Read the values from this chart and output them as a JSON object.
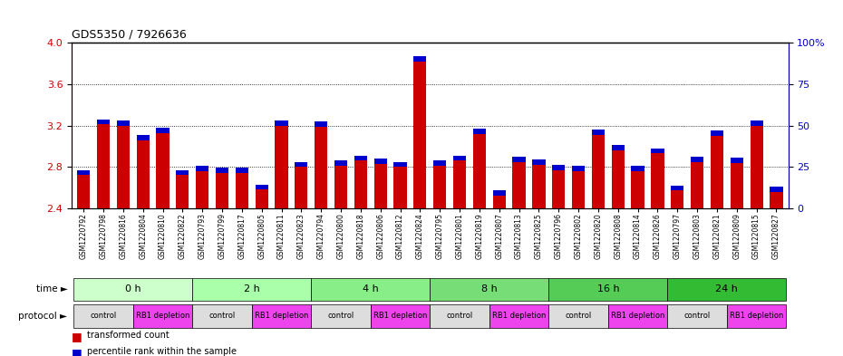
{
  "title": "GDS5350 / 7926636",
  "samples": [
    "GSM1220792",
    "GSM1220798",
    "GSM1220816",
    "GSM1220804",
    "GSM1220810",
    "GSM1220822",
    "GSM1220793",
    "GSM1220799",
    "GSM1220817",
    "GSM1220805",
    "GSM1220811",
    "GSM1220823",
    "GSM1220794",
    "GSM1220800",
    "GSM1220818",
    "GSM1220806",
    "GSM1220812",
    "GSM1220824",
    "GSM1220795",
    "GSM1220801",
    "GSM1220819",
    "GSM1220807",
    "GSM1220813",
    "GSM1220825",
    "GSM1220796",
    "GSM1220802",
    "GSM1220820",
    "GSM1220808",
    "GSM1220814",
    "GSM1220826",
    "GSM1220797",
    "GSM1220803",
    "GSM1220821",
    "GSM1220809",
    "GSM1220815",
    "GSM1220827"
  ],
  "red_values": [
    2.72,
    3.21,
    3.2,
    3.06,
    3.13,
    2.72,
    2.76,
    2.74,
    2.74,
    2.58,
    3.2,
    2.8,
    3.19,
    2.81,
    2.86,
    2.83,
    2.8,
    3.82,
    2.81,
    2.86,
    3.12,
    2.52,
    2.85,
    2.82,
    2.77,
    2.76,
    3.11,
    2.96,
    2.76,
    2.93,
    2.57,
    2.85,
    3.1,
    2.84,
    3.2,
    2.56
  ],
  "blue_values": [
    0.05,
    0.05,
    0.05,
    0.05,
    0.05,
    0.05,
    0.05,
    0.05,
    0.05,
    0.05,
    0.05,
    0.05,
    0.05,
    0.05,
    0.05,
    0.05,
    0.05,
    0.05,
    0.05,
    0.05,
    0.05,
    0.05,
    0.05,
    0.05,
    0.05,
    0.05,
    0.05,
    0.05,
    0.05,
    0.05,
    0.05,
    0.05,
    0.05,
    0.05,
    0.05,
    0.05
  ],
  "time_groups": [
    {
      "label": "0 h",
      "start": 0,
      "end": 6,
      "color": "#ccffcc"
    },
    {
      "label": "2 h",
      "start": 6,
      "end": 12,
      "color": "#aaffaa"
    },
    {
      "label": "4 h",
      "start": 12,
      "end": 18,
      "color": "#88ee88"
    },
    {
      "label": "8 h",
      "start": 18,
      "end": 24,
      "color": "#77dd77"
    },
    {
      "label": "16 h",
      "start": 24,
      "end": 30,
      "color": "#55cc55"
    },
    {
      "label": "24 h",
      "start": 30,
      "end": 36,
      "color": "#33bb33"
    }
  ],
  "protocol_groups": [
    {
      "label": "control",
      "start": 0,
      "end": 3,
      "color": "#dddddd"
    },
    {
      "label": "RB1 depletion",
      "start": 3,
      "end": 6,
      "color": "#ee44ee"
    },
    {
      "label": "control",
      "start": 6,
      "end": 9,
      "color": "#dddddd"
    },
    {
      "label": "RB1 depletion",
      "start": 9,
      "end": 12,
      "color": "#ee44ee"
    },
    {
      "label": "control",
      "start": 12,
      "end": 15,
      "color": "#dddddd"
    },
    {
      "label": "RB1 depletion",
      "start": 15,
      "end": 18,
      "color": "#ee44ee"
    },
    {
      "label": "control",
      "start": 18,
      "end": 21,
      "color": "#dddddd"
    },
    {
      "label": "RB1 depletion",
      "start": 21,
      "end": 24,
      "color": "#ee44ee"
    },
    {
      "label": "control",
      "start": 24,
      "end": 27,
      "color": "#dddddd"
    },
    {
      "label": "RB1 depletion",
      "start": 27,
      "end": 30,
      "color": "#ee44ee"
    },
    {
      "label": "control",
      "start": 30,
      "end": 33,
      "color": "#dddddd"
    },
    {
      "label": "RB1 depletion",
      "start": 33,
      "end": 36,
      "color": "#ee44ee"
    }
  ],
  "ylim": [
    2.4,
    4.0
  ],
  "yticks": [
    2.4,
    2.8,
    3.2,
    3.6,
    4.0
  ],
  "right_yticklabels": [
    "0",
    "25",
    "50",
    "75",
    "100%"
  ],
  "right_tick_pos": [
    2.4,
    2.8,
    3.2,
    3.6,
    4.0
  ],
  "bar_width": 0.65,
  "red_color": "#cc0000",
  "blue_color": "#0000cc",
  "bg_color": "#ffffff"
}
